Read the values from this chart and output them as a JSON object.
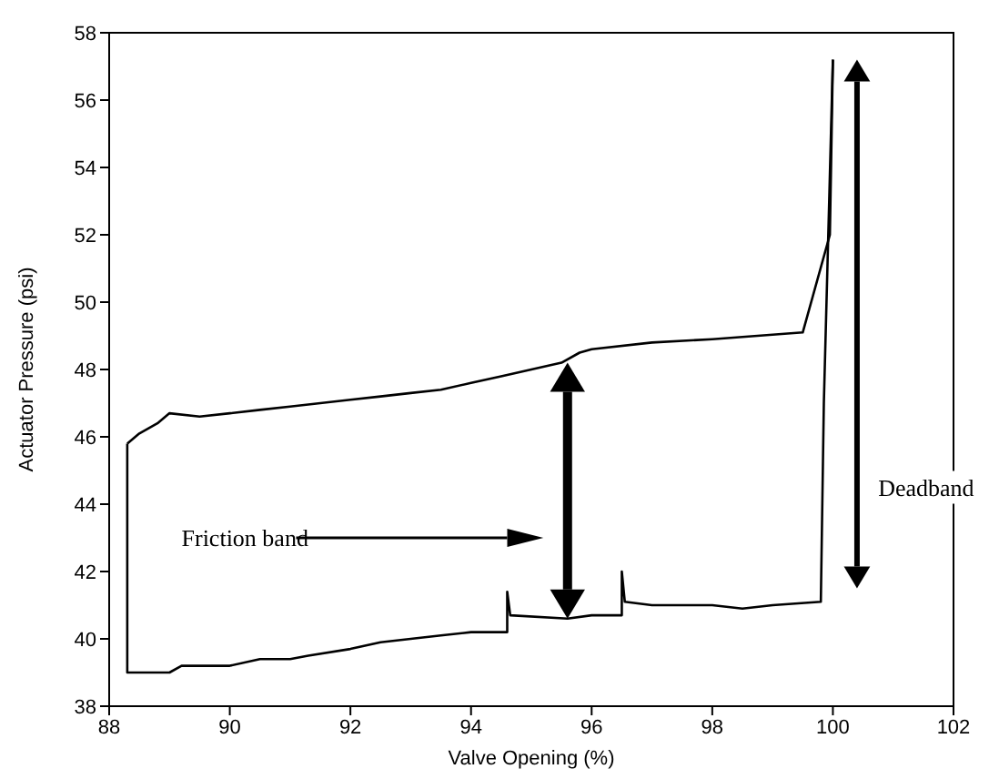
{
  "chart_data": {
    "type": "line",
    "xlabel": "Valve Opening (%)",
    "ylabel": "Actuator Pressure (psi)",
    "xlim": [
      88,
      102
    ],
    "xticks": [
      88,
      90,
      92,
      94,
      96,
      98,
      100,
      102
    ],
    "ylim": [
      38,
      58
    ],
    "yticks": [
      38,
      40,
      42,
      44,
      46,
      48,
      50,
      52,
      54,
      56,
      58
    ],
    "grid": false,
    "legend": false,
    "marker": "none",
    "line_style": "solid",
    "annotations": [
      "Friction band",
      "Deadband"
    ],
    "series": [
      {
        "color": "#000000",
        "x": [
          88.3,
          88.3,
          89,
          89.2,
          90,
          90.5,
          91,
          91.3,
          92,
          92.5,
          93,
          93.5,
          94,
          94.6,
          94.6,
          94.65,
          95.6,
          96,
          96.5,
          96.5,
          96.55,
          97,
          98,
          98.5,
          99,
          99.8,
          99.85,
          100
        ],
        "values": [
          45.8,
          39,
          39,
          39.2,
          39.2,
          39.4,
          39.4,
          39.5,
          39.7,
          39.9,
          40,
          40.1,
          40.2,
          40.2,
          41.4,
          40.7,
          40.6,
          40.7,
          40.7,
          42,
          41.1,
          41,
          41,
          40.9,
          41,
          41.1,
          47,
          57.2
        ]
      },
      {
        "color": "#000000",
        "x": [
          88.3,
          88.5,
          88.8,
          89,
          89.5,
          90,
          90.5,
          91,
          91.5,
          92,
          92.5,
          93,
          93.5,
          94,
          94.5,
          95,
          95.5,
          95.8,
          96,
          97,
          98,
          99.5,
          99.95,
          100
        ],
        "values": [
          45.8,
          46.1,
          46.4,
          46.7,
          46.6,
          46.7,
          46.8,
          46.9,
          47,
          47.1,
          47.2,
          47.3,
          47.4,
          47.6,
          47.8,
          48,
          48.2,
          48.5,
          48.6,
          48.8,
          48.9,
          49.1,
          52,
          57.2
        ]
      }
    ]
  }
}
